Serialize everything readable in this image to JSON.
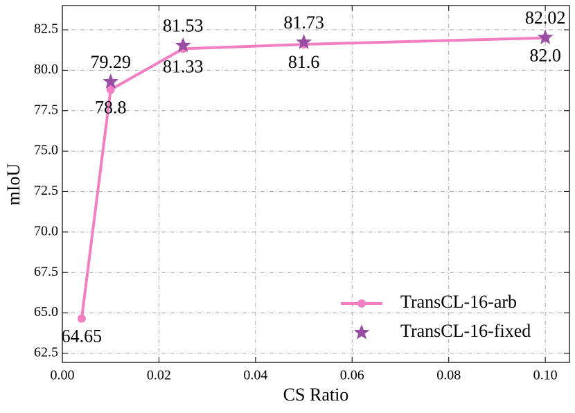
{
  "chart_data": {
    "type": "line",
    "xlabel": "CS Ratio",
    "ylabel": "mIoU",
    "series": [
      {
        "name": "TransCL-16-arb",
        "color": "#f27fc1",
        "marker": "circle",
        "line": true,
        "x": [
          0.004,
          0.01,
          0.025,
          0.05,
          0.1
        ],
        "values": [
          64.65,
          78.8,
          81.33,
          81.6,
          82.0
        ],
        "value_labels": [
          "64.65",
          "78.8",
          "81.33",
          "81.6",
          "82.0"
        ]
      },
      {
        "name": "TransCL-16-fixed",
        "color": "#984ea3",
        "marker": "star",
        "line": false,
        "x": [
          0.01,
          0.025,
          0.05,
          0.1
        ],
        "values": [
          79.29,
          81.53,
          81.73,
          82.02
        ],
        "value_labels": [
          "79.29",
          "81.53",
          "81.73",
          "82.02"
        ]
      }
    ],
    "xlim": [
      0,
      0.105
    ],
    "ylim": [
      61.94,
      84.0
    ],
    "xticks": [
      {
        "value": 0,
        "label": "0.00"
      },
      0.02,
      0.04,
      0.06,
      0.08,
      {
        "value": 0.1,
        "label": "0.10"
      }
    ],
    "yticks": [
      62.5,
      {
        "value": 65,
        "label": "65.0"
      },
      67.5,
      {
        "value": 70,
        "label": "70.0"
      },
      72.5,
      {
        "value": 75,
        "label": "75.0"
      },
      77.5,
      {
        "value": 80,
        "label": "80.0"
      },
      82.5
    ],
    "grid": true,
    "legend": "lower right"
  }
}
